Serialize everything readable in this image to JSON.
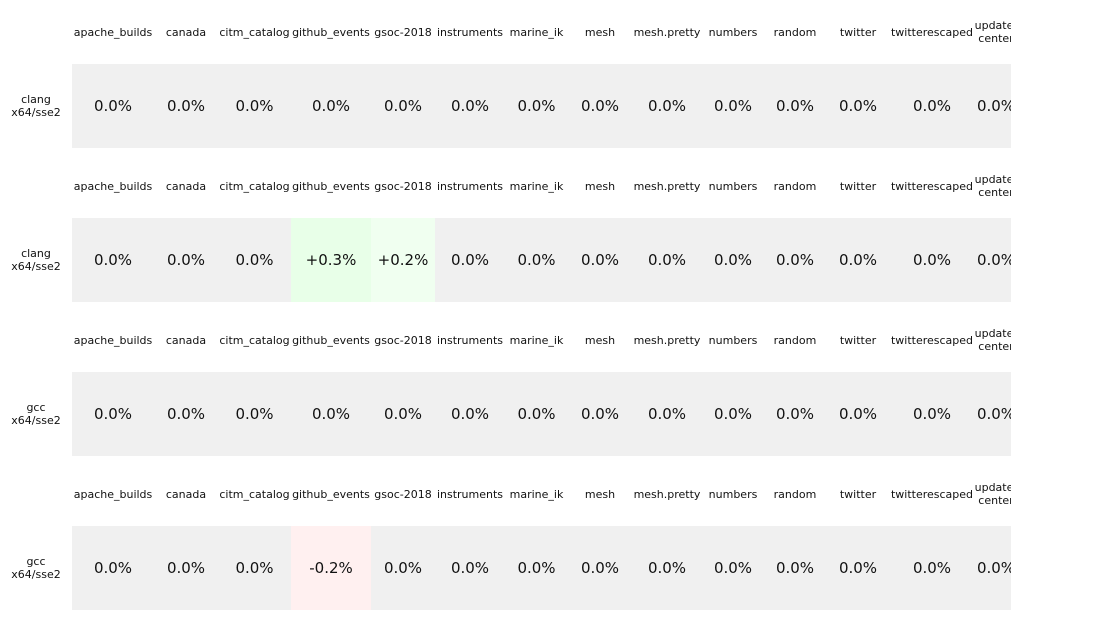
{
  "chart_data": {
    "type": "table",
    "columns": [
      "apache_builds",
      "canada",
      "citm_catalog",
      "github_events",
      "gsoc-2018",
      "instruments",
      "marine_ik",
      "mesh",
      "mesh.pretty",
      "numbers",
      "random",
      "twitter",
      "twitterescaped",
      "update-\ncenter"
    ],
    "panels": [
      {
        "row_label": "clang\nx64/sse2",
        "values": [
          "0.0%",
          "0.0%",
          "0.0%",
          "0.0%",
          "0.0%",
          "0.0%",
          "0.0%",
          "0.0%",
          "0.0%",
          "0.0%",
          "0.0%",
          "0.0%",
          "0.0%",
          "0.0%"
        ],
        "numeric": [
          0,
          0,
          0,
          0,
          0,
          0,
          0,
          0,
          0,
          0,
          0,
          0,
          0,
          0
        ]
      },
      {
        "row_label": "clang\nx64/sse2",
        "values": [
          "0.0%",
          "0.0%",
          "0.0%",
          "+0.3%",
          "+0.2%",
          "0.0%",
          "0.0%",
          "0.0%",
          "0.0%",
          "0.0%",
          "0.0%",
          "0.0%",
          "0.0%",
          "0.0%"
        ],
        "numeric": [
          0,
          0,
          0,
          0.3,
          0.2,
          0,
          0,
          0,
          0,
          0,
          0,
          0,
          0,
          0
        ]
      },
      {
        "row_label": "gcc\nx64/sse2",
        "values": [
          "0.0%",
          "0.0%",
          "0.0%",
          "0.0%",
          "0.0%",
          "0.0%",
          "0.0%",
          "0.0%",
          "0.0%",
          "0.0%",
          "0.0%",
          "0.0%",
          "0.0%",
          "0.0%"
        ],
        "numeric": [
          0,
          0,
          0,
          0,
          0,
          0,
          0,
          0,
          0,
          0,
          0,
          0,
          0,
          0
        ]
      },
      {
        "row_label": "gcc\nx64/sse2",
        "values": [
          "0.0%",
          "0.0%",
          "0.0%",
          "-0.2%",
          "0.0%",
          "0.0%",
          "0.0%",
          "0.0%",
          "0.0%",
          "0.0%",
          "0.0%",
          "0.0%",
          "0.0%",
          "0.0%"
        ],
        "numeric": [
          0,
          0,
          0,
          -0.2,
          0,
          0,
          0,
          0,
          0,
          0,
          0,
          0,
          0,
          0
        ]
      }
    ],
    "colors": {
      "neutral": "#f0f0f0",
      "positive": "#00ff00",
      "negative": "#ff0000"
    }
  }
}
